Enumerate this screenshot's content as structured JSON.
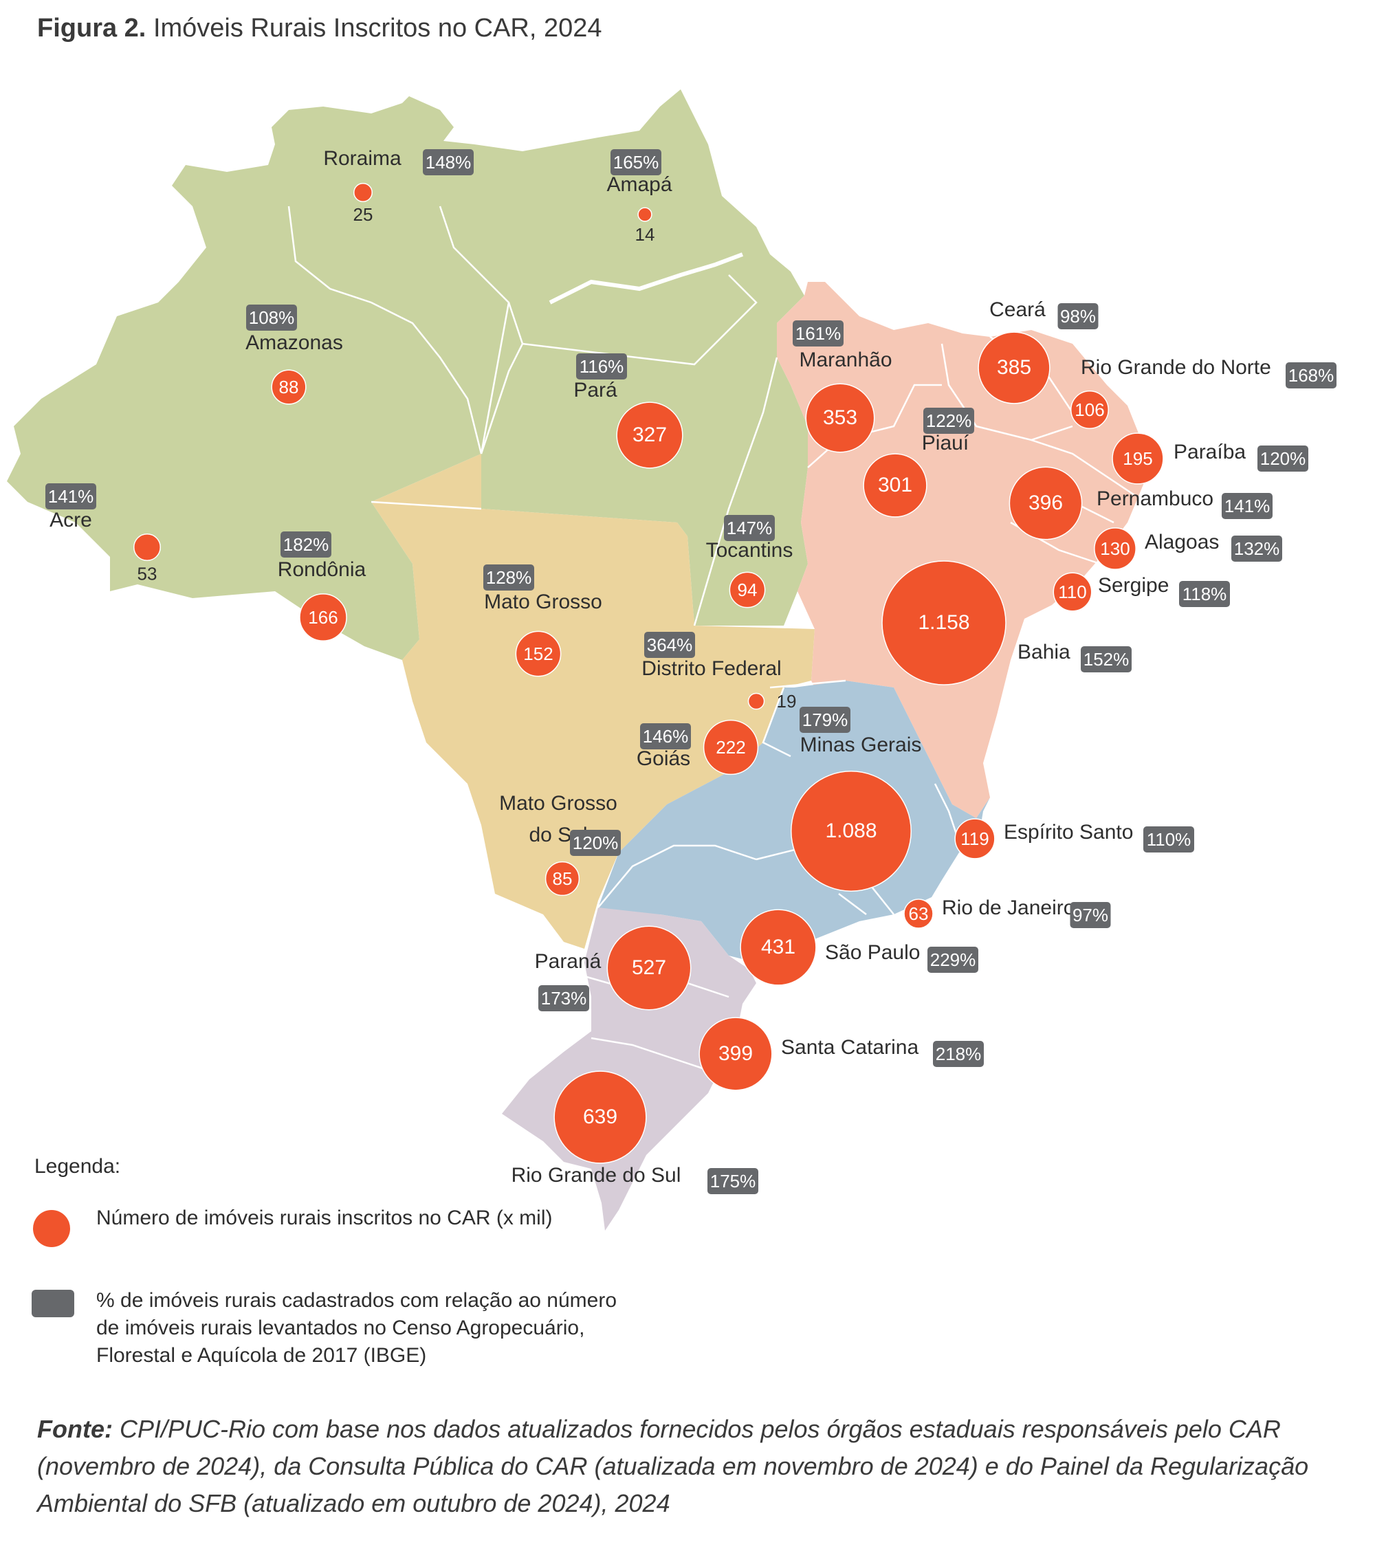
{
  "title": {
    "prefix": "Figura 2.",
    "text": "Imóveis Rurais Inscritos no CAR, 2024"
  },
  "colors": {
    "north": "#c9d3a0",
    "center_west": "#ebd49d",
    "northeast": "#f6c8b6",
    "southeast": "#adc7d9",
    "south": "#d7cdd8",
    "circle": "#f0542c",
    "badge": "#66686b"
  },
  "states": [
    {
      "id": "roraima",
      "name": "Roraima",
      "pct": "148%",
      "count": "25",
      "value": 25
    },
    {
      "id": "amapa",
      "name": "Amapá",
      "pct": "165%",
      "count": "14",
      "value": 14
    },
    {
      "id": "amazonas",
      "name": "Amazonas",
      "pct": "108%",
      "count": "88",
      "value": 88
    },
    {
      "id": "para",
      "name": "Pará",
      "pct": "116%",
      "count": "327",
      "value": 327
    },
    {
      "id": "acre",
      "name": "Acre",
      "pct": "141%",
      "count": "53",
      "value": 53
    },
    {
      "id": "rondonia",
      "name": "Rondônia",
      "pct": "182%",
      "count": "166",
      "value": 166
    },
    {
      "id": "tocantins",
      "name": "Tocantins",
      "pct": "147%",
      "count": "94",
      "value": 94
    },
    {
      "id": "maranhao",
      "name": "Maranhão",
      "pct": "161%",
      "count": "353",
      "value": 353
    },
    {
      "id": "piaui",
      "name": "Piauí",
      "pct": "122%",
      "count": "301",
      "value": 301
    },
    {
      "id": "ceara",
      "name": "Ceará",
      "pct": "98%",
      "count": "385",
      "value": 385
    },
    {
      "id": "rn",
      "name": "Rio Grande do Norte",
      "pct": "168%",
      "count": "106",
      "value": 106
    },
    {
      "id": "paraiba",
      "name": "Paraíba",
      "pct": "120%",
      "count": "195",
      "value": 195
    },
    {
      "id": "pernambuco",
      "name": "Pernambuco",
      "pct": "141%",
      "count": "396",
      "value": 396
    },
    {
      "id": "alagoas",
      "name": "Alagoas",
      "pct": "132%",
      "count": "130",
      "value": 130
    },
    {
      "id": "sergipe",
      "name": "Sergipe",
      "pct": "118%",
      "count": "110",
      "value": 110
    },
    {
      "id": "bahia",
      "name": "Bahia",
      "pct": "152%",
      "count": "1.158",
      "value": 1158
    },
    {
      "id": "mato_grosso",
      "name": "Mato Grosso",
      "pct": "128%",
      "count": "152",
      "value": 152
    },
    {
      "id": "df",
      "name": "Distrito Federal",
      "pct": "364%",
      "count": "19",
      "value": 19
    },
    {
      "id": "goias",
      "name": "Goiás",
      "pct": "146%",
      "count": "222",
      "value": 222
    },
    {
      "id": "minas",
      "name": "Minas Gerais",
      "pct": "179%",
      "count": "1.088",
      "value": 1088
    },
    {
      "id": "es",
      "name": "Espírito Santo",
      "pct": "110%",
      "count": "119",
      "value": 119
    },
    {
      "id": "rj",
      "name": "Rio de Janeiro",
      "pct": "97%",
      "count": "63",
      "value": 63
    },
    {
      "id": "sp",
      "name": "São Paulo",
      "pct": "229%",
      "count": "431",
      "value": 431
    },
    {
      "id": "ms",
      "name": "Mato Grosso do Sul",
      "name_lines": [
        "Mato Grosso",
        "do Sul"
      ],
      "pct": "120%",
      "count": "85",
      "value": 85
    },
    {
      "id": "parana",
      "name": "Paraná",
      "pct": "173%",
      "count": "527",
      "value": 527
    },
    {
      "id": "sc",
      "name": "Santa Catarina",
      "pct": "218%",
      "count": "399",
      "value": 399
    },
    {
      "id": "rs",
      "name": "Rio Grande do Sul",
      "pct": "175%",
      "count": "639",
      "value": 639
    }
  ],
  "legend": {
    "title": "Legenda:",
    "circle_text": "Número de imóveis rurais inscritos no CAR (x mil)",
    "box_text": "% de imóveis rurais cadastrados com relação ao número de imóveis rurais levantados no Censo Agropecuário, Florestal e Aquícola de 2017 (IBGE)"
  },
  "source": {
    "label": "Fonte:",
    "text": "CPI/PUC-Rio com base nos dados atualizados fornecidos pelos órgãos estaduais responsáveis pelo CAR (novembro de 2024), da Consulta Pública do CAR (atualizada em novembro de 2024) e do Painel da Regularização Ambiental do SFB (atualizado em outubro de 2024), 2024"
  }
}
